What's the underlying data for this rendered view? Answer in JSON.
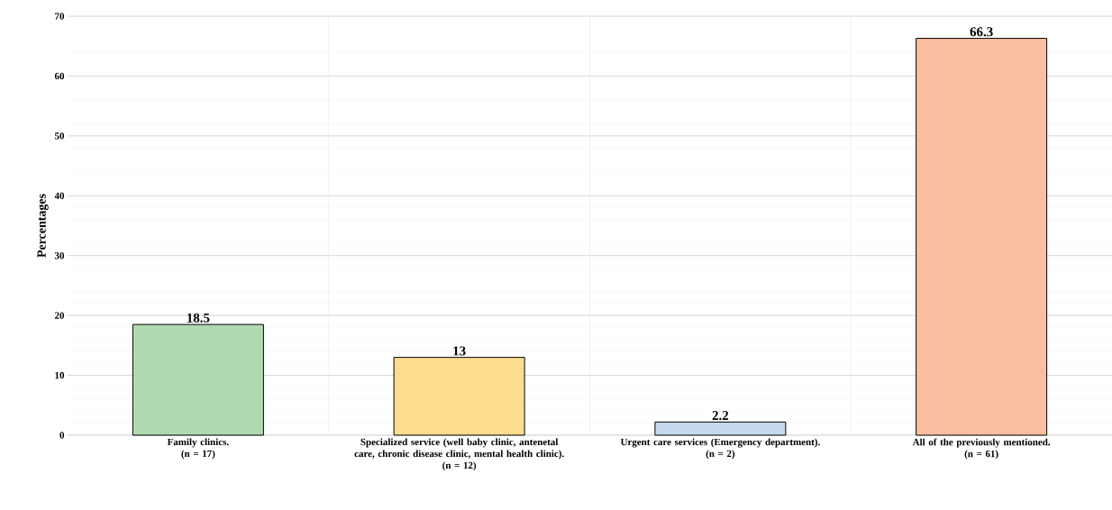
{
  "chart_data": {
    "type": "bar",
    "ylabel": "Percentages",
    "categories": [
      "Family clinics.\n(n = 17)",
      "Specialized service (well baby clinic, antenetal care, chronic disease clinic, mental health clinic).\n(n = 12)",
      "Urgent care services (Emergency department).\n(n = 2)",
      "All of the previously mentioned.\n(n = 61)"
    ],
    "values": [
      18.5,
      13,
      2.2,
      66.3
    ],
    "colors": [
      "#b0dab0",
      "#fcdc8e",
      "#c5d8ee",
      "#f9bfa0"
    ],
    "ylim": [
      0,
      70
    ],
    "yticks": [
      0,
      10,
      20,
      30,
      40,
      50,
      60,
      70
    ],
    "grid": true,
    "data_labels": true
  }
}
